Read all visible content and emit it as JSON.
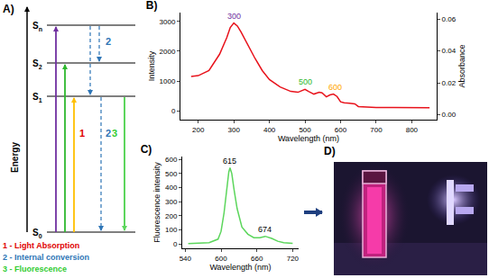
{
  "diagram": {
    "title": "A)",
    "axis_label": "Energy",
    "levels": [
      {
        "name": "S",
        "sub": "n"
      },
      {
        "name": "S",
        "sub": "2"
      },
      {
        "name": "S",
        "sub": "1"
      },
      {
        "name": "S",
        "sub": "0"
      }
    ],
    "transitions": [
      {
        "label": "1",
        "color": "#e00000"
      },
      {
        "label": "2",
        "color": "#2e75b6"
      },
      {
        "label": "2",
        "color": "#2e75b6"
      },
      {
        "label": "3",
        "color": "#33cc33"
      }
    ],
    "legend": [
      {
        "text": "1 - Light Absorption",
        "color": "#e00000"
      },
      {
        "text": "2 - Internal conversion",
        "color": "#2e75b6"
      },
      {
        "text": "3 - Fluorescence",
        "color": "#33cc33"
      }
    ]
  },
  "chart_data": [
    {
      "type": "line",
      "title": "B)",
      "x_label": "Wavelength (nm)",
      "y_label": "Intensity",
      "y2_label": "Absorbance",
      "color": "#e8121b",
      "grid": false,
      "x": [
        180,
        200,
        230,
        260,
        280,
        290,
        300,
        310,
        320,
        340,
        360,
        380,
        400,
        430,
        460,
        480,
        490,
        500,
        510,
        525,
        540,
        548,
        560,
        570,
        580,
        590,
        600,
        610,
        625,
        640,
        650,
        670,
        700,
        750,
        800,
        850
      ],
      "values": [
        1150,
        1180,
        1350,
        1900,
        2450,
        2800,
        2950,
        2850,
        2650,
        2200,
        1750,
        1350,
        1050,
        800,
        650,
        620,
        680,
        720,
        650,
        560,
        620,
        600,
        470,
        530,
        560,
        480,
        300,
        270,
        250,
        230,
        140,
        120,
        110,
        105,
        100,
        100
      ],
      "xlim": [
        150,
        870
      ],
      "xticks": [
        200,
        300,
        400,
        500,
        600,
        700,
        800
      ],
      "ylim": [
        -300,
        3300
      ],
      "yticks": [
        0,
        1000,
        2000,
        3000
      ],
      "y2lim": [
        -0.003,
        0.064
      ],
      "y2ticks": [
        {
          "value": 0,
          "label": "0.00"
        },
        0.02,
        0.04,
        0.06
      ],
      "annotations": [
        {
          "text": "300",
          "x": 300,
          "y": 2950,
          "color": "#7030a0"
        },
        {
          "text": "500",
          "x": 500,
          "y": 720,
          "color": "#2eb82e"
        },
        {
          "text": "600",
          "x": 585,
          "y": 560,
          "color": "#ffa500"
        }
      ]
    },
    {
      "type": "line",
      "title": "C)",
      "x_label": "Wavelength (nm)",
      "y_label": "Fluorescence intensity",
      "color": "#5cd65c",
      "grid": false,
      "x": [
        545,
        560,
        580,
        595,
        600,
        605,
        610,
        613,
        615,
        618,
        622,
        627,
        635,
        645,
        655,
        665,
        674,
        685,
        695,
        705,
        720
      ],
      "values": [
        3,
        5,
        10,
        35,
        90,
        220,
        420,
        510,
        540,
        500,
        380,
        250,
        120,
        70,
        45,
        45,
        55,
        40,
        20,
        10,
        5
      ],
      "xlim": [
        535,
        730
      ],
      "xticks": [
        540,
        600,
        660,
        720
      ],
      "ylim": [
        -30,
        620
      ],
      "yticks": [
        0,
        100,
        200,
        300,
        400,
        500,
        600
      ],
      "annotations": [
        {
          "text": "615",
          "x": 615,
          "y": 540,
          "color": "#000000"
        },
        {
          "text": "674",
          "x": 674,
          "y": 55,
          "color": "#000000"
        }
      ]
    }
  ],
  "photo": {
    "title": "D)"
  }
}
